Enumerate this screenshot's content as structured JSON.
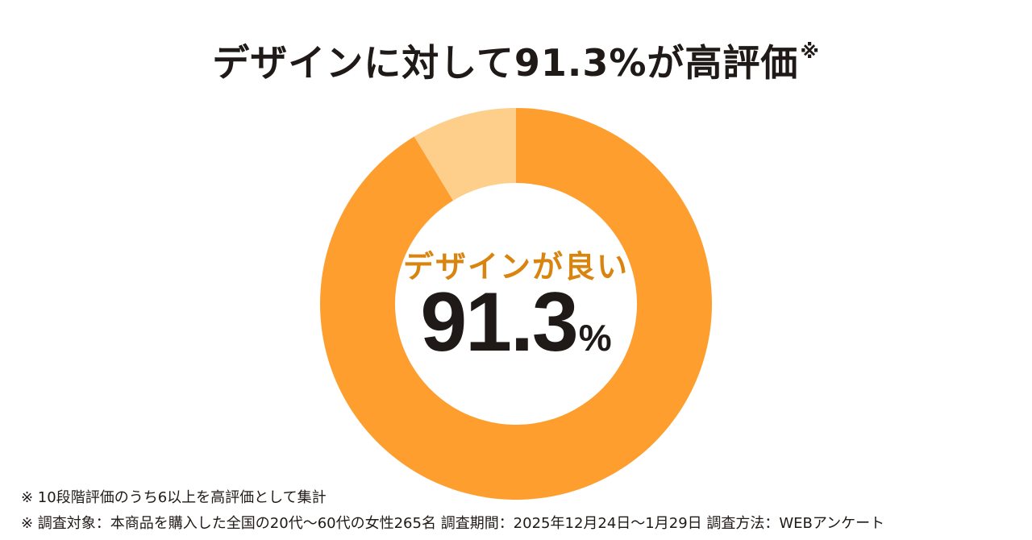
{
  "title": {
    "text": "デザインに対して91.3%が高評価",
    "mark": "※"
  },
  "center": {
    "label": "デザインが良い",
    "value": "91.3",
    "unit": "%"
  },
  "notes": [
    "※ 10段階評価のうち6以上を高評価として集計",
    "※ 調査対象：本商品を購入した全国の20代〜60代の女性265名 調査期間：2025年12月24日〜1月29日 調査方法：WEBアンケート"
  ],
  "colors": {
    "primary": "#fd9e2f",
    "secondary": "#fecf8b",
    "label": "#d9840f",
    "text": "#1f1a17"
  },
  "chart_data": {
    "type": "pie",
    "donut": true,
    "title": "デザインに対して91.3%が高評価",
    "categories": [
      "デザインが良い",
      ""
    ],
    "values": [
      91.3,
      8.7
    ],
    "unit": "%",
    "start_angle_deg": 0,
    "direction": "clockwise"
  }
}
